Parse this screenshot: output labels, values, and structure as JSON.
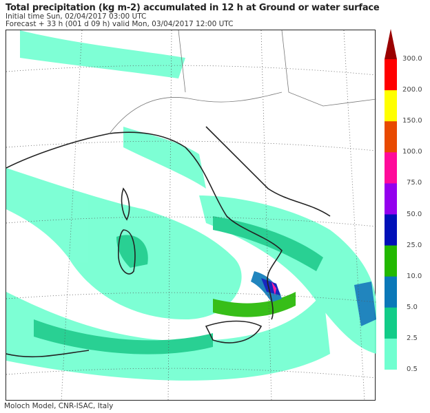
{
  "header": {
    "title": "Total precipitation (kg m-2) accumulated in  12 h at Ground or water surface",
    "initial_time": "Initial time  Sun, 02/04/2017  03:00 UTC",
    "forecast": "Forecast  +  33 h  (001 d 09 h)  valid Mon, 03/04/2017 12:00 UTC"
  },
  "colorbar": {
    "levels": [
      "300.0",
      "200.0",
      "150.0",
      "100.0",
      "75.0",
      "50.0",
      "25.0",
      "10.0",
      "5.0",
      "2.5",
      "0.5"
    ],
    "colors": [
      "#ff0000",
      "#ffff00",
      "#e84a00",
      "#ff0a9a",
      "#9400ee",
      "#0010b8",
      "#22b800",
      "#0a78b8",
      "#12cc88",
      "#70ffd0"
    ],
    "overflow_color": "#9a0000"
  },
  "footer": "Moloch Model, CNR-ISAC, Italy"
}
